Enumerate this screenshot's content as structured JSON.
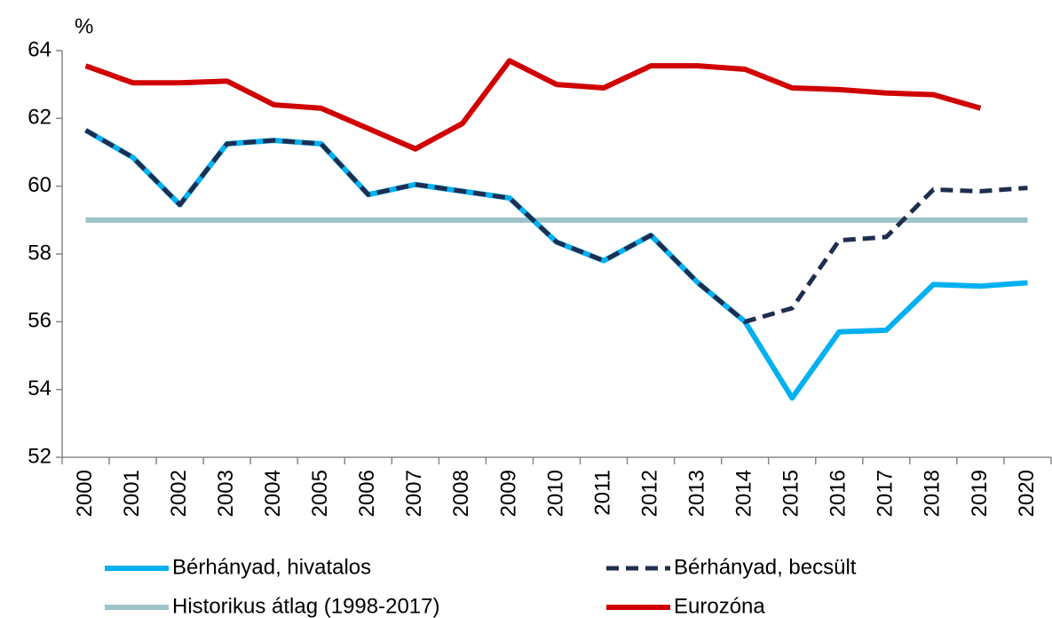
{
  "chart_data": {
    "type": "line",
    "y_unit": "%",
    "categories": [
      "2000",
      "2001",
      "2002",
      "2003",
      "2004",
      "2005",
      "2006",
      "2007",
      "2008",
      "2009",
      "2010",
      "2011",
      "2012",
      "2013",
      "2014",
      "2015",
      "2016",
      "2017",
      "2018",
      "2019",
      "2020"
    ],
    "series": [
      {
        "name": "Bérhányad, hivatalos",
        "color": "#00b0f0",
        "dash": false,
        "values": [
          61.65,
          60.85,
          59.45,
          61.25,
          61.35,
          61.25,
          59.75,
          60.05,
          59.85,
          59.65,
          58.35,
          57.8,
          58.55,
          57.15,
          56.0,
          53.75,
          55.7,
          55.75,
          57.1,
          57.05,
          57.15
        ]
      },
      {
        "name": "Bérhányad, becsült",
        "color": "#1f2d4f",
        "dash": true,
        "values": [
          61.65,
          60.85,
          59.45,
          61.25,
          61.35,
          61.25,
          59.75,
          60.05,
          59.85,
          59.65,
          58.35,
          57.8,
          58.55,
          57.15,
          56.0,
          56.4,
          58.4,
          58.5,
          59.9,
          59.85,
          59.95
        ]
      },
      {
        "name": "Historikus átlag (1998-2017)",
        "color": "#9dc3c9",
        "dash": false,
        "values": [
          59,
          59,
          59,
          59,
          59,
          59,
          59,
          59,
          59,
          59,
          59,
          59,
          59,
          59,
          59,
          59,
          59,
          59,
          59,
          59,
          59
        ]
      },
      {
        "name": "Eurozóna",
        "color": "#d00000",
        "dash": false,
        "values": [
          63.55,
          63.05,
          63.05,
          63.1,
          62.4,
          62.3,
          61.7,
          61.1,
          61.85,
          63.7,
          63.0,
          62.9,
          63.55,
          63.55,
          63.45,
          62.9,
          62.85,
          62.75,
          62.7,
          62.3,
          null
        ]
      }
    ],
    "ylim": [
      52,
      64
    ],
    "yticks": [
      52,
      54,
      56,
      58,
      60,
      62,
      64
    ],
    "grid": false,
    "legend": "bottom"
  }
}
